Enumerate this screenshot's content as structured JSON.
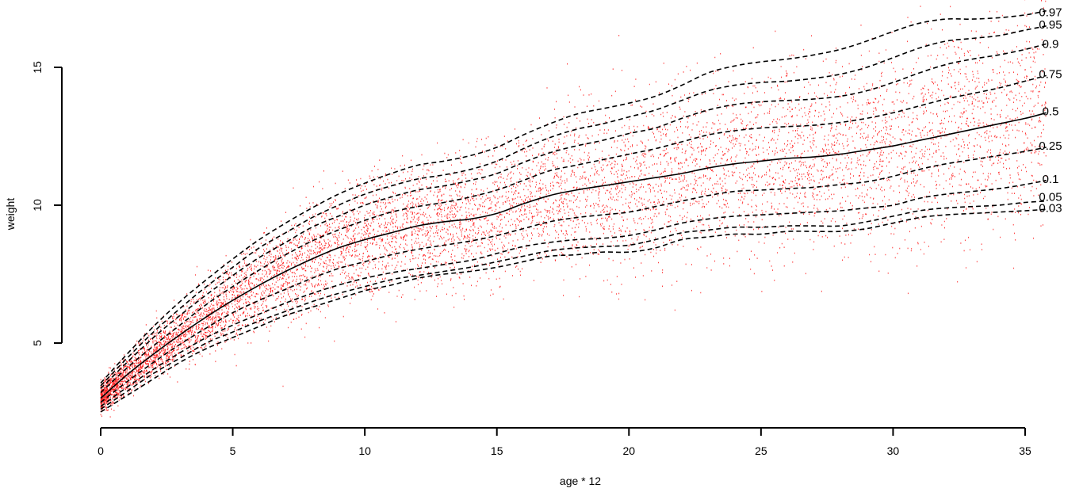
{
  "chart_data": {
    "type": "scatter",
    "title": "",
    "xlabel": "age * 12",
    "ylabel": "weight",
    "xlim": [
      0,
      35.8
    ],
    "ylim": [
      2.0,
      18.0
    ],
    "x_ticks": [
      0,
      5,
      10,
      15,
      20,
      25,
      30,
      35
    ],
    "y_ticks": [
      5,
      10,
      15
    ],
    "x_tick_labels": [
      "0",
      "5",
      "10",
      "15",
      "20",
      "25",
      "30",
      "35"
    ],
    "y_tick_labels": [
      "5",
      "10",
      "15"
    ],
    "grid": false,
    "points_color": "#ff0000",
    "line_color": "#000000",
    "scatter_note_points": [],
    "series": [
      {
        "name": "0.03",
        "style": "dashed",
        "label_y": 9.9,
        "x": [
          0,
          1,
          2,
          3,
          4,
          5,
          6,
          7,
          8,
          9,
          10,
          11,
          12,
          13,
          14,
          15,
          16,
          17,
          18,
          19,
          20,
          21,
          22,
          23,
          24,
          25,
          26,
          27,
          28,
          29,
          30,
          31,
          32,
          33,
          34,
          35,
          35.8
        ],
        "y": [
          2.5,
          3.1,
          3.7,
          4.3,
          4.8,
          5.2,
          5.6,
          6.0,
          6.3,
          6.6,
          6.9,
          7.1,
          7.35,
          7.5,
          7.6,
          7.75,
          7.95,
          8.15,
          8.2,
          8.3,
          8.3,
          8.45,
          8.75,
          8.85,
          8.95,
          8.95,
          9.05,
          9.05,
          9.05,
          9.15,
          9.35,
          9.55,
          9.65,
          9.7,
          9.75,
          9.8,
          9.85
        ]
      },
      {
        "name": "0.05",
        "style": "dashed",
        "label_y": 10.3,
        "x": [
          0,
          1,
          2,
          3,
          4,
          5,
          6,
          7,
          8,
          9,
          10,
          11,
          12,
          13,
          14,
          15,
          16,
          17,
          18,
          19,
          20,
          21,
          22,
          23,
          24,
          25,
          26,
          27,
          28,
          29,
          30,
          31,
          32,
          33,
          34,
          35,
          35.8
        ],
        "y": [
          2.6,
          3.25,
          3.9,
          4.45,
          5.0,
          5.4,
          5.8,
          6.15,
          6.5,
          6.8,
          7.05,
          7.3,
          7.45,
          7.6,
          7.75,
          7.95,
          8.15,
          8.35,
          8.45,
          8.5,
          8.55,
          8.75,
          9.0,
          9.1,
          9.2,
          9.2,
          9.25,
          9.25,
          9.25,
          9.4,
          9.6,
          9.8,
          9.9,
          9.95,
          10.0,
          10.1,
          10.15
        ]
      },
      {
        "name": "0.1",
        "style": "dashed",
        "label_y": 10.95,
        "x": [
          0,
          1,
          2,
          3,
          4,
          5,
          6,
          7,
          8,
          9,
          10,
          11,
          12,
          13,
          14,
          15,
          16,
          17,
          18,
          19,
          20,
          21,
          22,
          23,
          24,
          25,
          26,
          27,
          28,
          29,
          30,
          31,
          32,
          33,
          34,
          35,
          35.8
        ],
        "y": [
          2.7,
          3.4,
          4.05,
          4.65,
          5.2,
          5.65,
          6.05,
          6.45,
          6.8,
          7.1,
          7.35,
          7.55,
          7.7,
          7.85,
          8.0,
          8.25,
          8.5,
          8.65,
          8.75,
          8.8,
          8.9,
          9.1,
          9.35,
          9.5,
          9.6,
          9.65,
          9.7,
          9.75,
          9.8,
          9.9,
          10.0,
          10.25,
          10.4,
          10.5,
          10.6,
          10.75,
          10.9
        ]
      },
      {
        "name": "0.25",
        "style": "dashed",
        "label_y": 12.15,
        "x": [
          0,
          1,
          2,
          3,
          4,
          5,
          6,
          7,
          8,
          9,
          10,
          11,
          12,
          13,
          14,
          15,
          16,
          17,
          18,
          19,
          20,
          21,
          22,
          23,
          24,
          25,
          26,
          27,
          28,
          29,
          30,
          31,
          32,
          33,
          34,
          35,
          35.8
        ],
        "y": [
          2.85,
          3.6,
          4.3,
          4.95,
          5.55,
          6.1,
          6.55,
          6.95,
          7.35,
          7.7,
          7.95,
          8.2,
          8.4,
          8.55,
          8.7,
          8.9,
          9.15,
          9.4,
          9.55,
          9.65,
          9.75,
          9.95,
          10.15,
          10.35,
          10.5,
          10.55,
          10.6,
          10.65,
          10.75,
          10.85,
          11.05,
          11.3,
          11.5,
          11.65,
          11.8,
          11.95,
          12.1
        ]
      },
      {
        "name": "0.5",
        "style": "solid",
        "label_y": 13.4,
        "x": [
          0,
          1,
          2,
          3,
          4,
          5,
          6,
          7,
          8,
          9,
          10,
          11,
          12,
          13,
          14,
          15,
          16,
          17,
          18,
          19,
          20,
          21,
          22,
          23,
          24,
          25,
          26,
          27,
          28,
          29,
          30,
          31,
          32,
          33,
          34,
          35,
          35.8
        ],
        "y": [
          3.0,
          3.85,
          4.6,
          5.3,
          5.95,
          6.55,
          7.1,
          7.6,
          8.05,
          8.45,
          8.75,
          9.0,
          9.25,
          9.4,
          9.5,
          9.7,
          10.05,
          10.35,
          10.55,
          10.7,
          10.85,
          11.0,
          11.15,
          11.35,
          11.5,
          11.6,
          11.7,
          11.75,
          11.85,
          12.0,
          12.15,
          12.35,
          12.55,
          12.75,
          12.95,
          13.15,
          13.35
        ]
      },
      {
        "name": "0.75",
        "style": "dashed",
        "label_y": 14.75,
        "x": [
          0,
          1,
          2,
          3,
          4,
          5,
          6,
          7,
          8,
          9,
          10,
          11,
          12,
          13,
          14,
          15,
          16,
          17,
          18,
          19,
          20,
          21,
          22,
          23,
          24,
          25,
          26,
          27,
          28,
          29,
          30,
          31,
          32,
          33,
          34,
          35,
          35.8
        ],
        "y": [
          3.2,
          4.1,
          4.9,
          5.65,
          6.4,
          7.05,
          7.65,
          8.2,
          8.7,
          9.1,
          9.45,
          9.75,
          9.95,
          10.1,
          10.3,
          10.55,
          10.9,
          11.25,
          11.45,
          11.65,
          11.85,
          12.05,
          12.3,
          12.55,
          12.7,
          12.8,
          12.85,
          12.9,
          13.0,
          13.15,
          13.35,
          13.6,
          13.85,
          14.05,
          14.25,
          14.5,
          14.7
        ]
      },
      {
        "name": "0.9",
        "style": "dashed",
        "label_y": 15.85,
        "x": [
          0,
          1,
          2,
          3,
          4,
          5,
          6,
          7,
          8,
          9,
          10,
          11,
          12,
          13,
          14,
          15,
          16,
          17,
          18,
          19,
          20,
          21,
          22,
          23,
          24,
          25,
          26,
          27,
          28,
          29,
          30,
          31,
          32,
          33,
          34,
          35,
          35.8
        ],
        "y": [
          3.35,
          4.3,
          5.2,
          6.0,
          6.75,
          7.45,
          8.1,
          8.65,
          9.2,
          9.6,
          10.0,
          10.3,
          10.55,
          10.7,
          10.9,
          11.15,
          11.55,
          11.9,
          12.15,
          12.35,
          12.6,
          12.8,
          13.15,
          13.45,
          13.65,
          13.75,
          13.8,
          13.85,
          13.95,
          14.15,
          14.45,
          14.8,
          15.1,
          15.3,
          15.45,
          15.65,
          15.85
        ]
      },
      {
        "name": "0.95",
        "style": "dashed",
        "label_y": 16.55,
        "x": [
          0,
          1,
          2,
          3,
          4,
          5,
          6,
          7,
          8,
          9,
          10,
          11,
          12,
          13,
          14,
          15,
          16,
          17,
          18,
          19,
          20,
          21,
          22,
          23,
          24,
          25,
          26,
          27,
          28,
          29,
          30,
          31,
          32,
          33,
          34,
          35,
          35.8
        ],
        "y": [
          3.45,
          4.45,
          5.4,
          6.25,
          7.05,
          7.75,
          8.45,
          9.0,
          9.55,
          10.0,
          10.4,
          10.7,
          10.95,
          11.1,
          11.3,
          11.6,
          12.05,
          12.45,
          12.75,
          12.95,
          13.2,
          13.45,
          13.8,
          14.15,
          14.35,
          14.45,
          14.5,
          14.6,
          14.75,
          15.0,
          15.35,
          15.7,
          15.95,
          16.05,
          16.15,
          16.35,
          16.5
        ]
      },
      {
        "name": "0.97",
        "style": "dashed",
        "label_y": 17.0,
        "x": [
          0,
          1,
          2,
          3,
          4,
          5,
          6,
          7,
          8,
          9,
          10,
          11,
          12,
          13,
          14,
          15,
          16,
          17,
          18,
          19,
          20,
          21,
          22,
          23,
          24,
          25,
          26,
          27,
          28,
          29,
          30,
          31,
          32,
          33,
          34,
          35,
          35.8
        ],
        "y": [
          3.55,
          4.6,
          5.6,
          6.5,
          7.3,
          8.05,
          8.75,
          9.35,
          9.9,
          10.4,
          10.8,
          11.15,
          11.45,
          11.6,
          11.8,
          12.1,
          12.55,
          12.95,
          13.3,
          13.5,
          13.7,
          13.95,
          14.35,
          14.8,
          15.05,
          15.2,
          15.3,
          15.45,
          15.65,
          15.95,
          16.3,
          16.6,
          16.75,
          16.75,
          16.8,
          16.9,
          17.05
        ]
      }
    ]
  }
}
